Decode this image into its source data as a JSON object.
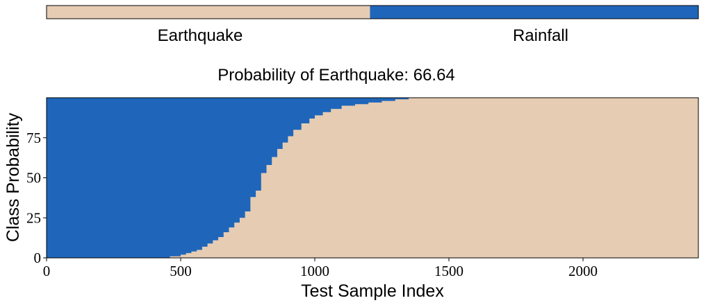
{
  "colors": {
    "earthquake": "#e6ccb3",
    "rainfall": "#1f66ba",
    "frame": "#000000",
    "background": "#ffffff"
  },
  "legend": {
    "class_a_label": "Earthquake",
    "class_b_label": "Rainfall",
    "class_a_fraction": 0.4962
  },
  "title": "Probability of Earthquake: 66.64",
  "chart_data": {
    "type": "area",
    "title": "Probability of Earthquake: 66.64",
    "xlabel": "Test Sample Index",
    "ylabel": "Class Probability",
    "xlim": [
      0,
      2430
    ],
    "ylim": [
      0,
      100
    ],
    "xticks": [
      "0",
      "500",
      "1000",
      "1500",
      "2000"
    ],
    "yticks": [
      "0",
      "25",
      "50",
      "75"
    ],
    "grid": false,
    "series": [
      {
        "name": "Earthquake",
        "x": [
          0,
          440,
          460,
          480,
          500,
          520,
          540,
          560,
          580,
          600,
          620,
          640,
          660,
          680,
          700,
          720,
          740,
          760,
          780,
          800,
          820,
          840,
          860,
          880,
          900,
          920,
          950,
          980,
          1000,
          1030,
          1060,
          1100,
          1150,
          1200,
          1250,
          1300,
          1350,
          2430
        ],
        "values": [
          0,
          0,
          1,
          1,
          2,
          3,
          4,
          5,
          7,
          9,
          11,
          13,
          16,
          19,
          22,
          25,
          29,
          38,
          42,
          53,
          58,
          63,
          68,
          72,
          76,
          80,
          84,
          87,
          89,
          91,
          93,
          95,
          96,
          97,
          98,
          99,
          100,
          100
        ]
      },
      {
        "name": "Rainfall",
        "x": [
          0,
          2430
        ],
        "values": [
          100,
          100
        ]
      }
    ]
  }
}
